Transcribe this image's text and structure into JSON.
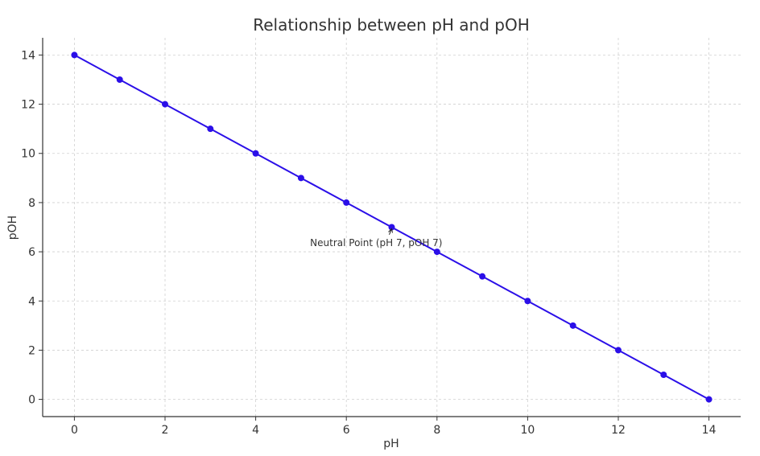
{
  "chart_data": {
    "type": "line",
    "title": "Relationship between pH and pOH",
    "xlabel": "pH",
    "ylabel": "pOH",
    "x": [
      0,
      1,
      2,
      3,
      4,
      5,
      6,
      7,
      8,
      9,
      10,
      11,
      12,
      13,
      14
    ],
    "series": [
      {
        "values": [
          14,
          13,
          12,
          11,
          10,
          9,
          8,
          7,
          6,
          5,
          4,
          3,
          2,
          1,
          0
        ],
        "color": "#2b0fe8"
      }
    ],
    "xlim": [
      -0.7,
      14.7
    ],
    "ylim": [
      -0.7,
      14.7
    ],
    "xticks": [
      0,
      2,
      4,
      6,
      8,
      10,
      12,
      14
    ],
    "yticks": [
      0,
      2,
      4,
      6,
      8,
      10,
      12,
      14
    ],
    "grid": true,
    "annotations": [
      {
        "text": "Neutral Point (pH 7, pOH 7)",
        "x": 7,
        "y": 7,
        "text_x": 5.2,
        "text_y": 6.4
      }
    ]
  }
}
